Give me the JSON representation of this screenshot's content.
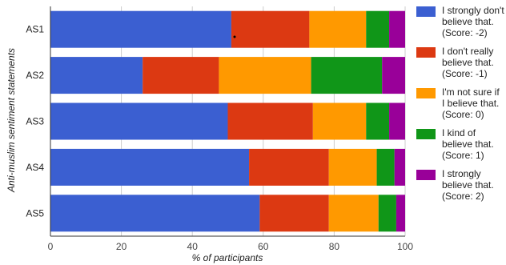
{
  "chart_data": {
    "type": "bar",
    "orientation": "horizontal",
    "stacked": true,
    "xlabel": "% of participants",
    "ylabel": "Anti-muslim sentiment statements",
    "xlim": [
      0,
      100
    ],
    "xticks": [
      "0",
      "20",
      "40",
      "60",
      "80",
      "100"
    ],
    "categories": [
      "AS1",
      "AS2",
      "AS3",
      "AS4",
      "AS5"
    ],
    "grid": true,
    "legend_position": "right",
    "series": [
      {
        "name": "I strongly don't believe that. (Score: -2)",
        "color": "#3b5fd1",
        "values": [
          51,
          26,
          50,
          56,
          59
        ]
      },
      {
        "name": "I don't really believe that. (Score: -1)",
        "color": "#dc3912",
        "values": [
          22,
          21.5,
          24,
          22.5,
          19.5
        ]
      },
      {
        "name": "I'm not sure if I believe that. (Score: 0)",
        "color": "#ff9900",
        "values": [
          16,
          26,
          15,
          13.5,
          14
        ]
      },
      {
        "name": "I kind of believe that. (Score: 1)",
        "color": "#109618",
        "values": [
          6.5,
          20,
          6.5,
          5,
          5
        ]
      },
      {
        "name": "I strongly believe that. (Score: 2)",
        "color": "#990099",
        "values": [
          4.5,
          6.5,
          4.5,
          3,
          2.5
        ]
      }
    ]
  },
  "legend": [
    {
      "label": "I strongly don't\nbelieve that.\n(Score: -2)",
      "color": "#3b5fd1"
    },
    {
      "label": "I don't really\nbelieve that.\n(Score: -1)",
      "color": "#dc3912"
    },
    {
      "label": "I'm not sure if\nI believe that.\n(Score: 0)",
      "color": "#ff9900"
    },
    {
      "label": "I kind of\nbelieve that.\n(Score: 1)",
      "color": "#109618"
    },
    {
      "label": "I strongly\nbelieve that.\n(Score: 2)",
      "color": "#990099"
    }
  ]
}
